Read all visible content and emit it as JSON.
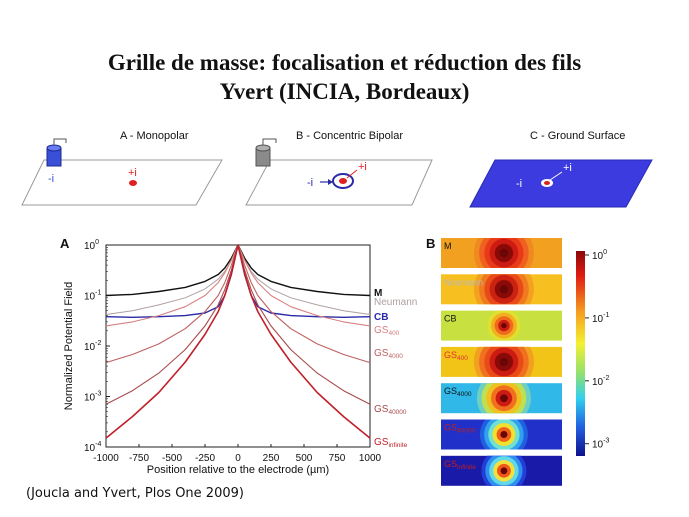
{
  "slide": {
    "title_line1": "Grille de masse: focalisation et réduction des fils",
    "title_line2": "Yvert (INCIA, Bordeaux)",
    "caption": "(Joucla and Yvert, Plos One 2009)"
  },
  "diagram": {
    "panels": [
      {
        "label": "A - Monopolar",
        "marks": [
          "-i",
          "+i"
        ]
      },
      {
        "label": "B - Concentric Bipolar",
        "marks": [
          "-i",
          "+i"
        ]
      },
      {
        "label": "C - Ground Surface",
        "marks": [
          "-i",
          "+i"
        ]
      }
    ]
  },
  "chart_data": [
    {
      "type": "line",
      "panel_letter": "A",
      "xlabel": "Position relative to the electrode (µm)",
      "ylabel": "Normalized Potential Field",
      "xlim": [
        -1000,
        1000
      ],
      "ylim": [
        0.0001,
        1
      ],
      "yscale": "log",
      "x_ticks": [
        "-1000",
        "-750",
        "-500",
        "-250",
        "0",
        "250",
        "500",
        "750",
        "1000"
      ],
      "y_ticks": [
        {
          "base": "10",
          "exp": "0"
        },
        {
          "base": "10",
          "exp": "-1"
        },
        {
          "base": "10",
          "exp": "-2"
        },
        {
          "base": "10",
          "exp": "-3"
        },
        {
          "base": "10",
          "exp": "-4"
        }
      ],
      "x": [
        0,
        50,
        100,
        150,
        250,
        400,
        600,
        800,
        1000
      ],
      "series": [
        {
          "name": "M",
          "sub": "",
          "color": "#111111",
          "width": 1.4,
          "values": [
            1,
            0.55,
            0.35,
            0.26,
            0.19,
            0.145,
            0.12,
            0.105,
            0.1
          ]
        },
        {
          "name": "Neumann",
          "sub": "",
          "color": "#b0a0a0",
          "width": 1.0,
          "values": [
            1,
            0.5,
            0.3,
            0.21,
            0.135,
            0.09,
            0.065,
            0.05,
            0.042
          ]
        },
        {
          "name": "CB",
          "sub": "",
          "color": "#2a2aa8",
          "width": 1.4,
          "values": [
            1,
            0.26,
            0.1,
            0.06,
            0.045,
            0.04,
            0.038,
            0.037,
            0.038
          ]
        },
        {
          "name": "GS",
          "sub": "400",
          "color": "#d98080",
          "width": 1.1,
          "values": [
            1,
            0.5,
            0.28,
            0.18,
            0.1,
            0.06,
            0.04,
            0.03,
            0.025
          ]
        },
        {
          "name": "GS",
          "sub": "4000",
          "color": "#c06060",
          "width": 1.1,
          "values": [
            1,
            0.4,
            0.18,
            0.1,
            0.048,
            0.022,
            0.011,
            0.0068,
            0.0047
          ]
        },
        {
          "name": "GS",
          "sub": "40000",
          "color": "#a84a4a",
          "width": 1.1,
          "values": [
            1,
            0.32,
            0.13,
            0.065,
            0.025,
            0.0085,
            0.0029,
            0.0013,
            0.0007
          ]
        },
        {
          "name": "GS",
          "sub": "infinite",
          "color": "#c0202a",
          "width": 1.6,
          "values": [
            1,
            0.27,
            0.1,
            0.048,
            0.017,
            0.0048,
            0.0012,
            0.0004,
            0.00015
          ]
        }
      ]
    },
    {
      "type": "heatmap",
      "panel_letter": "B",
      "colorbar_ticks": [
        {
          "base": "10",
          "exp": "0"
        },
        {
          "base": "10",
          "exp": "-1"
        },
        {
          "base": "10",
          "exp": "-2"
        },
        {
          "base": "10",
          "exp": "-3"
        }
      ],
      "rows": [
        {
          "name": "M",
          "sub": "",
          "label_color": "#111111",
          "bg": "#f2a020",
          "rings": [
            "#f08a20",
            "#f06020",
            "#e83a18",
            "#cc1b12",
            "#8a0a08"
          ],
          "spot": 1.0
        },
        {
          "name": "Neumann",
          "sub": "",
          "label_color": "#b8b8b8",
          "bg": "#f7c020",
          "rings": [
            "#f4a020",
            "#f07a20",
            "#e84a18",
            "#cc2212",
            "#8a0a08"
          ],
          "spot": 1.0
        },
        {
          "name": "CB",
          "sub": "",
          "label_color": "#111111",
          "bg": "#c8e040",
          "rings": [
            "#e0e030",
            "#f2b020",
            "#ef6a1c",
            "#cc1b12"
          ],
          "spot": 0.55
        },
        {
          "name": "GS",
          "sub": "400",
          "label_color": "#e03030",
          "bg": "#f2c418",
          "rings": [
            "#f2a020",
            "#f07020",
            "#e84a18",
            "#cc1b12",
            "#8a0a08"
          ],
          "spot": 1.0
        },
        {
          "name": "GS",
          "sub": "4000",
          "label_color": "#111111",
          "bg": "#30b8e8",
          "rings": [
            "#70d0c0",
            "#c0e050",
            "#f0c020",
            "#f07020",
            "#cc1b12"
          ],
          "spot": 0.9
        },
        {
          "name": "GS",
          "sub": "40000",
          "label_color": "#c02020",
          "bg": "#2030c8",
          "rings": [
            "#2060e0",
            "#30a0f0",
            "#70e0d0",
            "#f0e030",
            "#f06018"
          ],
          "spot": 0.8
        },
        {
          "name": "GS",
          "sub": "infinite",
          "label_color": "#c02020",
          "bg": "#1a1aa8",
          "rings": [
            "#2040d8",
            "#3090f0",
            "#60d8e8",
            "#f0e040",
            "#f05818"
          ],
          "spot": 0.75
        }
      ]
    }
  ]
}
